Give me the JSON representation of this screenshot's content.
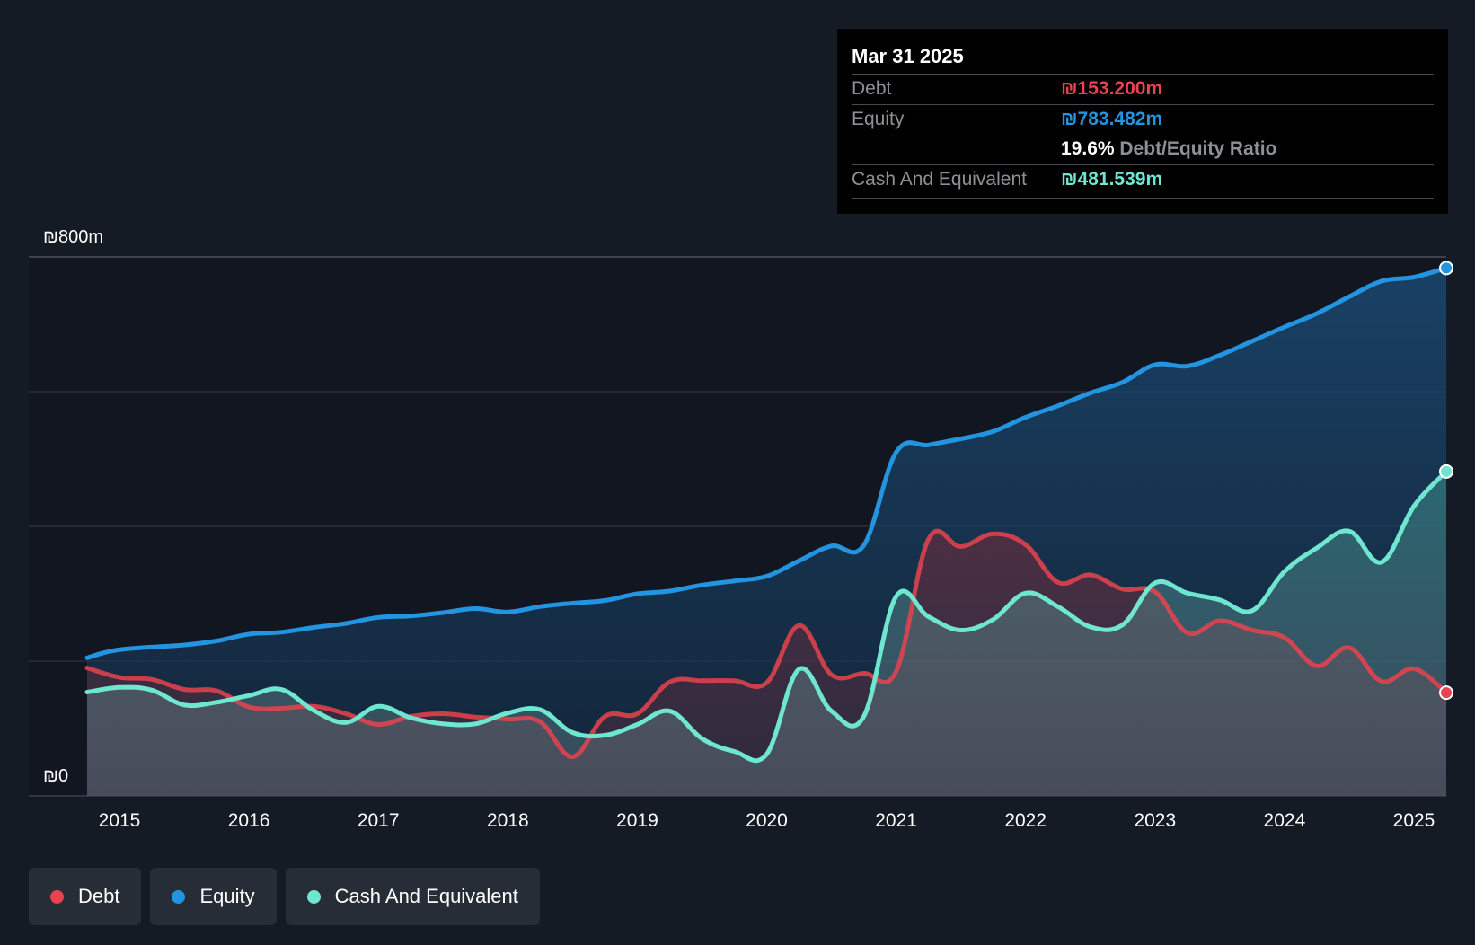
{
  "tooltip": {
    "date": "Mar 31 2025",
    "debt_label": "Debt",
    "debt_value": "₪153.200m",
    "equity_label": "Equity",
    "equity_value": "₪783.482m",
    "ratio_value": "19.6%",
    "ratio_label": "Debt/Equity Ratio",
    "cash_label": "Cash And Equivalent",
    "cash_value": "₪481.539m"
  },
  "legend": {
    "debt": "Debt",
    "equity": "Equity",
    "cash": "Cash And Equivalent"
  },
  "colors": {
    "debt": "#e8434e",
    "equity": "#2394df",
    "cash": "#6ee6d0",
    "background": "#151b24"
  },
  "chart_data": {
    "type": "line",
    "currency": "₪",
    "ylim": [
      0,
      800
    ],
    "ytick_labels": [
      "₪800m",
      "₪0"
    ],
    "x_tick_labels": [
      "2015",
      "2016",
      "2017",
      "2018",
      "2019",
      "2020",
      "2021",
      "2022",
      "2023",
      "2024",
      "2025"
    ],
    "series": [
      {
        "name": "Equity",
        "points": [
          [
            2014.75,
            205
          ],
          [
            2015.0,
            217
          ],
          [
            2015.5,
            224
          ],
          [
            2015.75,
            230
          ],
          [
            2016.0,
            240
          ],
          [
            2016.25,
            243
          ],
          [
            2016.5,
            250
          ],
          [
            2016.75,
            256
          ],
          [
            2017.0,
            265
          ],
          [
            2017.25,
            267
          ],
          [
            2017.5,
            272
          ],
          [
            2017.75,
            278
          ],
          [
            2018.0,
            273
          ],
          [
            2018.25,
            281
          ],
          [
            2018.5,
            286
          ],
          [
            2018.75,
            290
          ],
          [
            2019.0,
            300
          ],
          [
            2019.25,
            304
          ],
          [
            2019.5,
            313
          ],
          [
            2019.75,
            319
          ],
          [
            2020.0,
            326
          ],
          [
            2020.25,
            349
          ],
          [
            2020.5,
            371
          ],
          [
            2020.75,
            372
          ],
          [
            2021.0,
            510
          ],
          [
            2021.25,
            521
          ],
          [
            2021.5,
            530
          ],
          [
            2021.75,
            541
          ],
          [
            2022.0,
            562
          ],
          [
            2022.25,
            579
          ],
          [
            2022.5,
            598
          ],
          [
            2022.75,
            614
          ],
          [
            2023.0,
            640
          ],
          [
            2023.25,
            638
          ],
          [
            2023.5,
            654
          ],
          [
            2023.75,
            675
          ],
          [
            2024.0,
            696
          ],
          [
            2024.25,
            716
          ],
          [
            2024.5,
            741
          ],
          [
            2024.75,
            764
          ],
          [
            2025.0,
            770
          ],
          [
            2025.25,
            783.482
          ]
        ]
      },
      {
        "name": "Debt",
        "points": [
          [
            2014.75,
            190
          ],
          [
            2015.0,
            176
          ],
          [
            2015.25,
            173
          ],
          [
            2015.5,
            158
          ],
          [
            2015.75,
            156
          ],
          [
            2016.0,
            132
          ],
          [
            2016.25,
            130
          ],
          [
            2016.5,
            133
          ],
          [
            2016.75,
            122
          ],
          [
            2017.0,
            106
          ],
          [
            2017.25,
            118
          ],
          [
            2017.5,
            122
          ],
          [
            2017.75,
            117
          ],
          [
            2018.0,
            114
          ],
          [
            2018.25,
            110
          ],
          [
            2018.5,
            58
          ],
          [
            2018.75,
            118
          ],
          [
            2019.0,
            122
          ],
          [
            2019.25,
            169
          ],
          [
            2019.5,
            171
          ],
          [
            2019.75,
            171
          ],
          [
            2020.0,
            168
          ],
          [
            2020.25,
            253
          ],
          [
            2020.5,
            180
          ],
          [
            2020.75,
            182
          ],
          [
            2021.0,
            185
          ],
          [
            2021.25,
            381
          ],
          [
            2021.5,
            370
          ],
          [
            2021.75,
            389
          ],
          [
            2022.0,
            373
          ],
          [
            2022.25,
            317
          ],
          [
            2022.5,
            328
          ],
          [
            2022.75,
            307
          ],
          [
            2023.0,
            303
          ],
          [
            2023.25,
            242
          ],
          [
            2023.5,
            260
          ],
          [
            2023.75,
            246
          ],
          [
            2024.0,
            235
          ],
          [
            2024.25,
            193
          ],
          [
            2024.5,
            220
          ],
          [
            2024.75,
            170
          ],
          [
            2025.0,
            189
          ],
          [
            2025.25,
            153.2
          ]
        ]
      },
      {
        "name": "Cash And Equivalent",
        "points": [
          [
            2014.75,
            154
          ],
          [
            2015.0,
            161
          ],
          [
            2015.25,
            157
          ],
          [
            2015.5,
            135
          ],
          [
            2015.75,
            139
          ],
          [
            2016.0,
            149
          ],
          [
            2016.25,
            158
          ],
          [
            2016.5,
            127
          ],
          [
            2016.75,
            109
          ],
          [
            2017.0,
            133
          ],
          [
            2017.25,
            116
          ],
          [
            2017.5,
            107
          ],
          [
            2017.75,
            107
          ],
          [
            2018.0,
            123
          ],
          [
            2018.25,
            128
          ],
          [
            2018.5,
            94
          ],
          [
            2018.75,
            90
          ],
          [
            2019.0,
            106
          ],
          [
            2019.25,
            126
          ],
          [
            2019.5,
            85
          ],
          [
            2019.75,
            66
          ],
          [
            2020.0,
            62
          ],
          [
            2020.25,
            188
          ],
          [
            2020.5,
            126
          ],
          [
            2020.75,
            118
          ],
          [
            2021.0,
            296
          ],
          [
            2021.25,
            266
          ],
          [
            2021.5,
            246
          ],
          [
            2021.75,
            262
          ],
          [
            2022.0,
            301
          ],
          [
            2022.25,
            281
          ],
          [
            2022.5,
            251
          ],
          [
            2022.75,
            254
          ],
          [
            2023.0,
            316
          ],
          [
            2023.25,
            301
          ],
          [
            2023.5,
            291
          ],
          [
            2023.75,
            275
          ],
          [
            2024.0,
            333
          ],
          [
            2024.25,
            368
          ],
          [
            2024.5,
            393
          ],
          [
            2024.75,
            347
          ],
          [
            2025.0,
            430
          ],
          [
            2025.25,
            481.539
          ]
        ]
      }
    ]
  }
}
